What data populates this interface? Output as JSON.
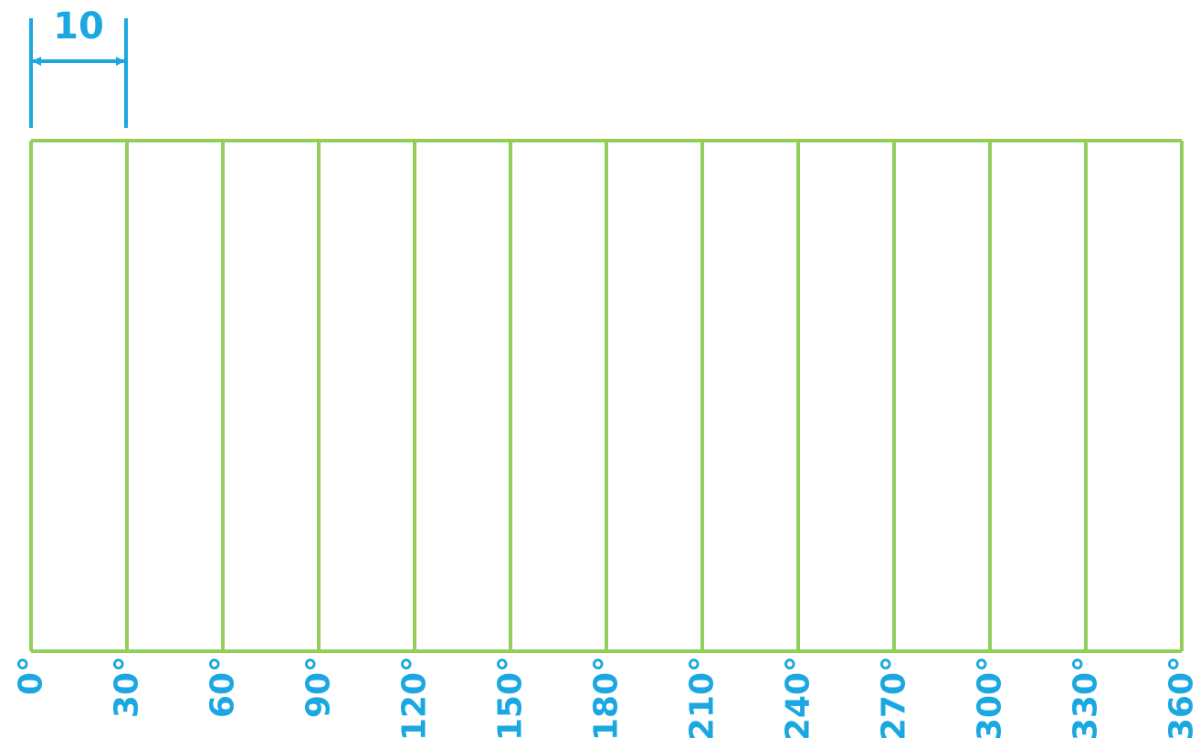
{
  "dimension": {
    "label": "10",
    "color": "#1ba7e1"
  },
  "grid": {
    "divisions": 12,
    "line_color": "#92cf5a"
  },
  "angle_labels": [
    "0°",
    "30°",
    "60°",
    "90°",
    "120°",
    "150°",
    "180°",
    "210°",
    "240°",
    "270°",
    "300°",
    "330°",
    "360°"
  ],
  "label_color": "#1ba7e1"
}
